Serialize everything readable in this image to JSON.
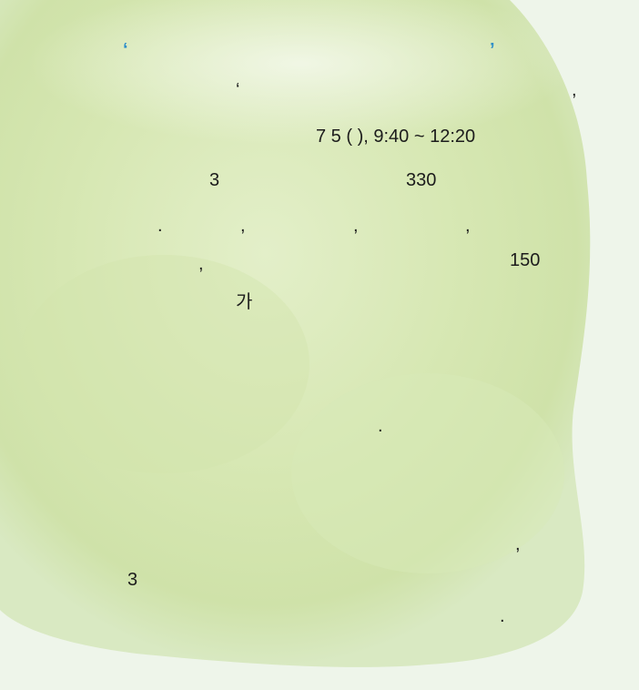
{
  "document": {
    "fragments": [
      {
        "id": "quote-open-blue",
        "text": "‘",
        "accent": true
      },
      {
        "id": "quote-close-blue",
        "text": "’",
        "accent": true
      },
      {
        "id": "quote-open",
        "text": "‘"
      },
      {
        "id": "comma-line2",
        "text": ","
      },
      {
        "id": "date-time",
        "text": "7    5   (   ), 9:40  ~  12:20"
      },
      {
        "id": "num-3",
        "text": "3"
      },
      {
        "id": "num-330",
        "text": "330"
      },
      {
        "id": "dot-line4",
        "text": "."
      },
      {
        "id": "comma-line4-a",
        "text": ","
      },
      {
        "id": "comma-line4-b",
        "text": ","
      },
      {
        "id": "comma-line4-c",
        "text": ","
      },
      {
        "id": "comma-line5",
        "text": ","
      },
      {
        "id": "num-150",
        "text": "150"
      },
      {
        "id": "hangul-ga",
        "text": "가"
      },
      {
        "id": "dot-mid",
        "text": "."
      },
      {
        "id": "comma-lower",
        "text": ","
      },
      {
        "id": "num-3-lower",
        "text": "3"
      },
      {
        "id": "dot-bottom",
        "text": "."
      }
    ]
  }
}
